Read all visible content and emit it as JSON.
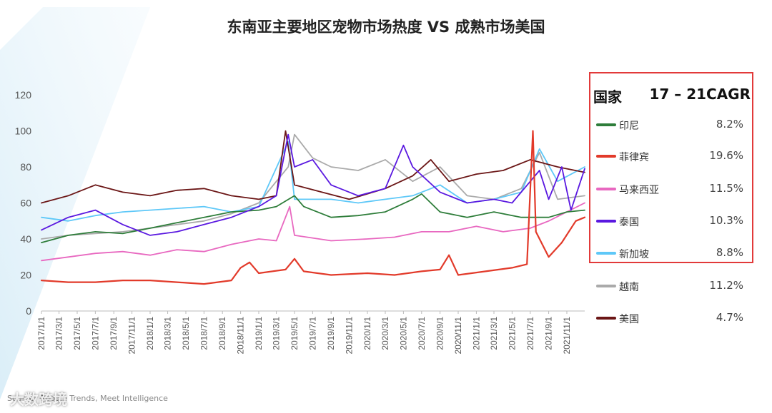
{
  "title": "东南亚主要地区宠物市场热度 VS 成熟市场美国",
  "legend": {
    "header_country": "国家",
    "header_metric": "17 – 21CAGR",
    "box_color": "#e23a3a",
    "box_series": [
      "印尼",
      "菲律宾",
      "马来西亚",
      "泰国",
      "新加坡"
    ]
  },
  "source_text": "Source: Google Trends,  Meet Intelligence",
  "watermark": "大数跨境",
  "chart_data": {
    "type": "line",
    "title": "东南亚主要地区宠物市场热度 VS 成熟市场美国",
    "x_range": [
      "2017-01-01",
      "2021-12-31"
    ],
    "ylim": [
      0,
      120
    ],
    "yticks": [
      0,
      20,
      40,
      60,
      80,
      100,
      120
    ],
    "grid": false,
    "legend_position": "right",
    "x_tick_labels": [
      "2017/1/1",
      "2017/3/1",
      "2017/5/1",
      "2017/7/1",
      "2017/9/1",
      "2017/11/1",
      "2018/1/1",
      "2018/3/1",
      "2018/5/1",
      "2018/7/1",
      "2018/9/1",
      "2018/11/1",
      "2019/1/1",
      "2019/3/1",
      "2019/5/1",
      "2019/7/1",
      "2019/9/1",
      "2019/11/1",
      "2020/1/1",
      "2020/3/1",
      "2020/5/1",
      "2020/7/1",
      "2020/9/1",
      "2020/11/1",
      "2021/1/1",
      "2021/3/1",
      "2021/5/1",
      "2021/7/1",
      "2021/9/1",
      "2021/11/1"
    ],
    "series": [
      {
        "name": "印尼",
        "color": "#2e7d3a",
        "cagr": "8.2%",
        "points": [
          [
            "2017-01-01",
            38
          ],
          [
            "2017-04-01",
            42
          ],
          [
            "2017-07-01",
            44
          ],
          [
            "2017-10-01",
            43
          ],
          [
            "2018-01-01",
            46
          ],
          [
            "2018-04-01",
            49
          ],
          [
            "2018-07-01",
            52
          ],
          [
            "2018-10-01",
            55
          ],
          [
            "2019-01-01",
            56
          ],
          [
            "2019-03-01",
            58
          ],
          [
            "2019-05-01",
            64
          ],
          [
            "2019-06-01",
            58
          ],
          [
            "2019-09-01",
            52
          ],
          [
            "2019-12-01",
            53
          ],
          [
            "2020-03-01",
            55
          ],
          [
            "2020-06-01",
            62
          ],
          [
            "2020-07-01",
            65
          ],
          [
            "2020-09-01",
            55
          ],
          [
            "2020-12-01",
            52
          ],
          [
            "2021-03-01",
            55
          ],
          [
            "2021-06-01",
            52
          ],
          [
            "2021-09-01",
            52
          ],
          [
            "2021-11-01",
            55
          ],
          [
            "2021-12-31",
            56
          ]
        ]
      },
      {
        "name": "菲律宾",
        "color": "#e23a2a",
        "cagr": "19.6%",
        "points": [
          [
            "2017-01-01",
            17
          ],
          [
            "2017-04-01",
            16
          ],
          [
            "2017-07-01",
            16
          ],
          [
            "2017-10-01",
            17
          ],
          [
            "2018-01-01",
            17
          ],
          [
            "2018-04-01",
            16
          ],
          [
            "2018-07-01",
            15
          ],
          [
            "2018-10-01",
            17
          ],
          [
            "2018-11-01",
            24
          ],
          [
            "2018-12-01",
            27
          ],
          [
            "2019-01-01",
            21
          ],
          [
            "2019-04-01",
            23
          ],
          [
            "2019-05-01",
            29
          ],
          [
            "2019-06-01",
            22
          ],
          [
            "2019-09-01",
            20
          ],
          [
            "2020-01-01",
            21
          ],
          [
            "2020-04-01",
            20
          ],
          [
            "2020-07-01",
            22
          ],
          [
            "2020-09-01",
            23
          ],
          [
            "2020-10-01",
            31
          ],
          [
            "2020-11-01",
            20
          ],
          [
            "2021-02-01",
            22
          ],
          [
            "2021-05-01",
            24
          ],
          [
            "2021-06-20",
            26
          ],
          [
            "2021-07-10",
            100
          ],
          [
            "2021-07-20",
            44
          ],
          [
            "2021-09-01",
            30
          ],
          [
            "2021-10-15",
            38
          ],
          [
            "2021-12-01",
            50
          ],
          [
            "2021-12-31",
            52
          ]
        ]
      },
      {
        "name": "马来西亚",
        "color": "#e868c0",
        "cagr": "11.5%",
        "points": [
          [
            "2017-01-01",
            28
          ],
          [
            "2017-04-01",
            30
          ],
          [
            "2017-07-01",
            32
          ],
          [
            "2017-10-01",
            33
          ],
          [
            "2018-01-01",
            31
          ],
          [
            "2018-04-01",
            34
          ],
          [
            "2018-07-01",
            33
          ],
          [
            "2018-10-01",
            37
          ],
          [
            "2019-01-01",
            40
          ],
          [
            "2019-03-01",
            39
          ],
          [
            "2019-04-15",
            58
          ],
          [
            "2019-05-01",
            42
          ],
          [
            "2019-09-01",
            39
          ],
          [
            "2020-01-01",
            40
          ],
          [
            "2020-04-01",
            41
          ],
          [
            "2020-07-01",
            44
          ],
          [
            "2020-10-01",
            44
          ],
          [
            "2021-01-01",
            47
          ],
          [
            "2021-04-01",
            44
          ],
          [
            "2021-07-01",
            46
          ],
          [
            "2021-09-01",
            50
          ],
          [
            "2021-11-01",
            55
          ],
          [
            "2021-12-31",
            60
          ]
        ]
      },
      {
        "name": "泰国",
        "color": "#5a18e0",
        "cagr": "10.3%",
        "points": [
          [
            "2017-01-01",
            45
          ],
          [
            "2017-04-01",
            52
          ],
          [
            "2017-07-01",
            56
          ],
          [
            "2017-10-01",
            48
          ],
          [
            "2018-01-01",
            42
          ],
          [
            "2018-04-01",
            44
          ],
          [
            "2018-07-01",
            48
          ],
          [
            "2018-10-01",
            52
          ],
          [
            "2019-01-01",
            58
          ],
          [
            "2019-03-01",
            64
          ],
          [
            "2019-04-10",
            98
          ],
          [
            "2019-05-01",
            80
          ],
          [
            "2019-07-01",
            84
          ],
          [
            "2019-09-01",
            70
          ],
          [
            "2019-12-01",
            64
          ],
          [
            "2020-03-01",
            68
          ],
          [
            "2020-05-01",
            92
          ],
          [
            "2020-06-01",
            80
          ],
          [
            "2020-09-01",
            66
          ],
          [
            "2020-12-01",
            60
          ],
          [
            "2021-03-01",
            62
          ],
          [
            "2021-05-01",
            60
          ],
          [
            "2021-08-01",
            78
          ],
          [
            "2021-09-01",
            62
          ],
          [
            "2021-10-15",
            80
          ],
          [
            "2021-11-15",
            56
          ],
          [
            "2021-12-31",
            79
          ]
        ]
      },
      {
        "name": "新加坡",
        "color": "#5ec8f8",
        "cagr": "8.8%",
        "points": [
          [
            "2017-01-01",
            52
          ],
          [
            "2017-04-01",
            50
          ],
          [
            "2017-07-01",
            53
          ],
          [
            "2017-10-01",
            55
          ],
          [
            "2018-01-01",
            56
          ],
          [
            "2018-04-01",
            57
          ],
          [
            "2018-07-01",
            58
          ],
          [
            "2018-10-01",
            55
          ],
          [
            "2019-01-01",
            58
          ],
          [
            "2019-04-10",
            94
          ],
          [
            "2019-05-01",
            62
          ],
          [
            "2019-09-01",
            62
          ],
          [
            "2019-12-01",
            60
          ],
          [
            "2020-03-01",
            62
          ],
          [
            "2020-06-01",
            64
          ],
          [
            "2020-09-01",
            70
          ],
          [
            "2020-12-01",
            60
          ],
          [
            "2021-03-01",
            62
          ],
          [
            "2021-06-01",
            66
          ],
          [
            "2021-08-01",
            90
          ],
          [
            "2021-10-01",
            72
          ],
          [
            "2021-12-31",
            80
          ]
        ]
      },
      {
        "name": "越南",
        "color": "#aaaaaa",
        "cagr": "11.2%",
        "points": [
          [
            "2017-01-01",
            40
          ],
          [
            "2017-04-01",
            42
          ],
          [
            "2017-07-01",
            43
          ],
          [
            "2017-10-01",
            44
          ],
          [
            "2018-01-01",
            46
          ],
          [
            "2018-04-01",
            48
          ],
          [
            "2018-07-01",
            50
          ],
          [
            "2018-10-01",
            54
          ],
          [
            "2019-01-01",
            60
          ],
          [
            "2019-04-10",
            80
          ],
          [
            "2019-05-01",
            98
          ],
          [
            "2019-07-01",
            85
          ],
          [
            "2019-09-01",
            80
          ],
          [
            "2019-12-01",
            78
          ],
          [
            "2020-03-01",
            84
          ],
          [
            "2020-06-01",
            72
          ],
          [
            "2020-09-01",
            80
          ],
          [
            "2020-12-01",
            64
          ],
          [
            "2021-03-01",
            62
          ],
          [
            "2021-06-01",
            68
          ],
          [
            "2021-08-01",
            88
          ],
          [
            "2021-10-01",
            62
          ],
          [
            "2021-12-31",
            64
          ]
        ]
      },
      {
        "name": "美国",
        "color": "#6b1616",
        "cagr": "4.7%",
        "points": [
          [
            "2017-01-01",
            60
          ],
          [
            "2017-04-01",
            64
          ],
          [
            "2017-07-01",
            70
          ],
          [
            "2017-10-01",
            66
          ],
          [
            "2018-01-01",
            64
          ],
          [
            "2018-04-01",
            67
          ],
          [
            "2018-07-01",
            68
          ],
          [
            "2018-10-01",
            64
          ],
          [
            "2019-01-01",
            62
          ],
          [
            "2019-03-01",
            64
          ],
          [
            "2019-04-01",
            100
          ],
          [
            "2019-05-01",
            70
          ],
          [
            "2019-08-01",
            66
          ],
          [
            "2019-11-01",
            62
          ],
          [
            "2020-03-01",
            68
          ],
          [
            "2020-06-01",
            75
          ],
          [
            "2020-08-01",
            84
          ],
          [
            "2020-10-01",
            72
          ],
          [
            "2021-01-01",
            76
          ],
          [
            "2021-04-01",
            78
          ],
          [
            "2021-07-01",
            84
          ],
          [
            "2021-10-01",
            80
          ],
          [
            "2021-12-31",
            77
          ]
        ]
      }
    ]
  }
}
